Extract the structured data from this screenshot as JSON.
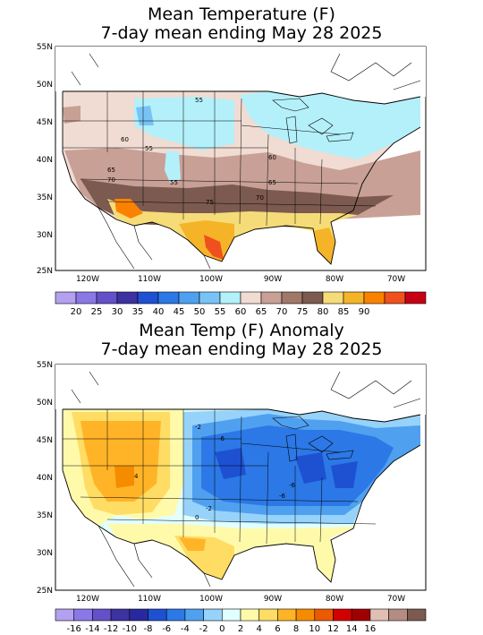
{
  "panels": [
    {
      "title_line1": "Mean Temperature (F)",
      "title_line2": "7-day mean ending May 28 2025",
      "lat_labels": [
        "55N",
        "50N",
        "45N",
        "40N",
        "35N",
        "30N",
        "25N"
      ],
      "lon_labels": [
        "120W",
        "110W",
        "100W",
        "90W",
        "80W",
        "70W"
      ],
      "colorbar": {
        "colors": [
          "#b4a0f0",
          "#8a78e6",
          "#6450c8",
          "#3c32a0",
          "#1e50d2",
          "#2c78e6",
          "#50a0f0",
          "#78c3f5",
          "#b4f0fa",
          "#f0dcd2",
          "#c8a096",
          "#a07869",
          "#7c5a50",
          "#f5dc78",
          "#f5b428",
          "#fa8200",
          "#f0501e",
          "#c80014"
        ],
        "labels": [
          "20",
          "25",
          "30",
          "35",
          "40",
          "45",
          "50",
          "55",
          "60",
          "65",
          "70",
          "75",
          "80",
          "85",
          "90"
        ]
      },
      "contour_labels": [
        "55",
        "60",
        "55",
        "55",
        "65",
        "70",
        "60",
        "65",
        "75",
        "70"
      ]
    },
    {
      "title_line1": "Mean Temp (F) Anomaly",
      "title_line2": "7-day mean ending May 28 2025",
      "lat_labels": [
        "55N",
        "50N",
        "45N",
        "40N",
        "35N",
        "30N",
        "25N"
      ],
      "lon_labels": [
        "120W",
        "110W",
        "100W",
        "90W",
        "80W",
        "70W"
      ],
      "colorbar": {
        "colors": [
          "#b4a0f0",
          "#8a78e6",
          "#6450c8",
          "#3c32a0",
          "#2828a0",
          "#1e50d2",
          "#2c78e6",
          "#50a0f0",
          "#96d2fa",
          "#e1ffff",
          "#fffaaa",
          "#ffdc64",
          "#ffb428",
          "#f58c00",
          "#eb5a00",
          "#d20000",
          "#a00000",
          "#e1beb4",
          "#b48c82",
          "#7c5a50"
        ],
        "labels": [
          "-16",
          "-14",
          "-12",
          "-10",
          "-8",
          "-6",
          "-4",
          "-2",
          "0",
          "2",
          "4",
          "6",
          "8",
          "10",
          "12",
          "14",
          "16"
        ]
      },
      "contour_labels": [
        "-2",
        "-6",
        "-6",
        "-6",
        "-2",
        "0",
        "4"
      ]
    }
  ]
}
